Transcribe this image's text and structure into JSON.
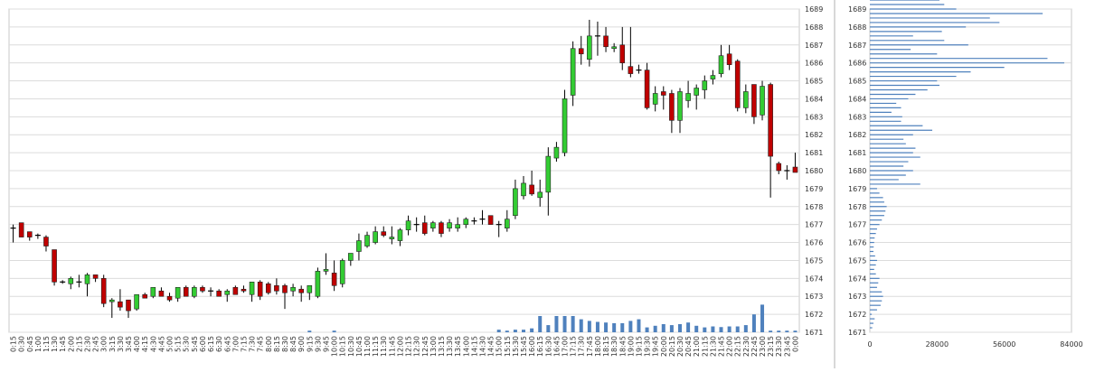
{
  "chart_data": [
    {
      "type": "candlestick",
      "title": "",
      "xlabel": "",
      "ylabel": "",
      "ylim": [
        1671,
        1689
      ],
      "y_ticks": [
        1671,
        1672,
        1673,
        1674,
        1675,
        1676,
        1677,
        1678,
        1679,
        1680,
        1681,
        1682,
        1683,
        1684,
        1685,
        1686,
        1687,
        1688,
        1689
      ],
      "x_ticks": [
        "0:15",
        "0:30",
        "0:45",
        "1:00",
        "1:15",
        "1:30",
        "1:45",
        "2:00",
        "2:15",
        "2:30",
        "2:45",
        "3:00",
        "3:15",
        "3:30",
        "3:45",
        "4:00",
        "4:15",
        "4:30",
        "4:45",
        "5:00",
        "5:15",
        "5:30",
        "5:45",
        "6:00",
        "6:15",
        "6:30",
        "6:45",
        "7:00",
        "7:15",
        "7:30",
        "7:45",
        "8:00",
        "8:15",
        "8:30",
        "8:45",
        "9:00",
        "9:15",
        "9:30",
        "9:45",
        "10:00",
        "10:15",
        "10:30",
        "10:45",
        "11:00",
        "11:15",
        "11:30",
        "11:45",
        "12:00",
        "12:15",
        "12:30",
        "12:45",
        "13:00",
        "13:15",
        "13:30",
        "13:45",
        "14:00",
        "14:15",
        "14:30",
        "14:45",
        "15:00",
        "15:15",
        "15:30",
        "15:45",
        "16:00",
        "16:15",
        "16:30",
        "16:45",
        "17:00",
        "17:15",
        "17:30",
        "17:45",
        "18:00",
        "18:15",
        "18:30",
        "18:45",
        "19:00",
        "19:15",
        "19:30",
        "19:45",
        "20:00",
        "20:15",
        "20:30",
        "20:45",
        "21:00",
        "21:15",
        "21:30",
        "21:45",
        "22:00",
        "22:15",
        "22:30",
        "22:45",
        "23:00",
        "23:15",
        "23:30",
        "23:45",
        "0:00"
      ],
      "grid": true,
      "candles": [
        {
          "o": 1676.8,
          "h": 1677.0,
          "l": 1676.0,
          "c": 1676.8
        },
        {
          "o": 1677.1,
          "h": 1677.1,
          "l": 1676.3,
          "c": 1676.3
        },
        {
          "o": 1676.6,
          "h": 1676.6,
          "l": 1676.1,
          "c": 1676.3
        },
        {
          "o": 1676.4,
          "h": 1676.5,
          "l": 1676.2,
          "c": 1676.4
        },
        {
          "o": 1676.3,
          "h": 1676.4,
          "l": 1675.5,
          "c": 1675.8
        },
        {
          "o": 1675.6,
          "h": 1675.6,
          "l": 1673.6,
          "c": 1673.8
        },
        {
          "o": 1673.8,
          "h": 1673.9,
          "l": 1673.7,
          "c": 1673.8
        },
        {
          "o": 1673.7,
          "h": 1674.1,
          "l": 1673.4,
          "c": 1674.0
        },
        {
          "o": 1673.8,
          "h": 1674.2,
          "l": 1673.5,
          "c": 1673.8
        },
        {
          "o": 1673.7,
          "h": 1674.3,
          "l": 1673.0,
          "c": 1674.2
        },
        {
          "o": 1674.2,
          "h": 1674.2,
          "l": 1673.8,
          "c": 1674.0
        },
        {
          "o": 1674.0,
          "h": 1674.2,
          "l": 1672.4,
          "c": 1672.6
        },
        {
          "o": 1672.7,
          "h": 1672.9,
          "l": 1671.8,
          "c": 1672.8
        },
        {
          "o": 1672.7,
          "h": 1673.4,
          "l": 1672.2,
          "c": 1672.4
        },
        {
          "o": 1672.8,
          "h": 1672.8,
          "l": 1671.8,
          "c": 1672.2
        },
        {
          "o": 1672.3,
          "h": 1673.1,
          "l": 1672.2,
          "c": 1673.1
        },
        {
          "o": 1673.1,
          "h": 1673.2,
          "l": 1672.9,
          "c": 1672.9
        },
        {
          "o": 1673.0,
          "h": 1673.5,
          "l": 1672.9,
          "c": 1673.5
        },
        {
          "o": 1673.3,
          "h": 1673.5,
          "l": 1673.0,
          "c": 1673.0
        },
        {
          "o": 1673.0,
          "h": 1673.2,
          "l": 1672.7,
          "c": 1672.8
        },
        {
          "o": 1672.9,
          "h": 1673.5,
          "l": 1672.7,
          "c": 1673.5
        },
        {
          "o": 1673.5,
          "h": 1673.6,
          "l": 1673.0,
          "c": 1673.0
        },
        {
          "o": 1673.0,
          "h": 1673.6,
          "l": 1672.9,
          "c": 1673.5
        },
        {
          "o": 1673.5,
          "h": 1673.6,
          "l": 1673.2,
          "c": 1673.3
        },
        {
          "o": 1673.3,
          "h": 1673.5,
          "l": 1673.0,
          "c": 1673.3
        },
        {
          "o": 1673.3,
          "h": 1673.4,
          "l": 1673.0,
          "c": 1673.0
        },
        {
          "o": 1673.1,
          "h": 1673.4,
          "l": 1672.7,
          "c": 1673.3
        },
        {
          "o": 1673.5,
          "h": 1673.6,
          "l": 1673.1,
          "c": 1673.1
        },
        {
          "o": 1673.4,
          "h": 1673.6,
          "l": 1673.2,
          "c": 1673.3
        },
        {
          "o": 1673.1,
          "h": 1673.8,
          "l": 1672.7,
          "c": 1673.8
        },
        {
          "o": 1673.8,
          "h": 1673.9,
          "l": 1672.8,
          "c": 1673.0
        },
        {
          "o": 1673.7,
          "h": 1673.8,
          "l": 1673.1,
          "c": 1673.2
        },
        {
          "o": 1673.6,
          "h": 1674.0,
          "l": 1673.1,
          "c": 1673.3
        },
        {
          "o": 1673.6,
          "h": 1673.7,
          "l": 1672.3,
          "c": 1673.2
        },
        {
          "o": 1673.3,
          "h": 1673.7,
          "l": 1673.0,
          "c": 1673.5
        },
        {
          "o": 1673.4,
          "h": 1673.6,
          "l": 1672.7,
          "c": 1673.2
        },
        {
          "o": 1673.2,
          "h": 1673.6,
          "l": 1672.8,
          "c": 1673.6
        },
        {
          "o": 1673.0,
          "h": 1674.6,
          "l": 1672.9,
          "c": 1674.4
        },
        {
          "o": 1674.4,
          "h": 1675.4,
          "l": 1674.2,
          "c": 1674.5
        },
        {
          "o": 1674.3,
          "h": 1675.0,
          "l": 1673.3,
          "c": 1673.6
        },
        {
          "o": 1673.7,
          "h": 1675.1,
          "l": 1673.5,
          "c": 1675.0
        },
        {
          "o": 1675.0,
          "h": 1675.4,
          "l": 1674.7,
          "c": 1675.4
        },
        {
          "o": 1675.5,
          "h": 1676.5,
          "l": 1675.0,
          "c": 1676.1
        },
        {
          "o": 1675.8,
          "h": 1676.6,
          "l": 1675.7,
          "c": 1676.4
        },
        {
          "o": 1676.0,
          "h": 1676.9,
          "l": 1675.9,
          "c": 1676.6
        },
        {
          "o": 1676.6,
          "h": 1676.9,
          "l": 1676.3,
          "c": 1676.4
        },
        {
          "o": 1676.2,
          "h": 1676.9,
          "l": 1675.9,
          "c": 1676.3
        },
        {
          "o": 1676.1,
          "h": 1676.8,
          "l": 1675.8,
          "c": 1676.7
        },
        {
          "o": 1676.7,
          "h": 1677.5,
          "l": 1676.4,
          "c": 1677.2
        },
        {
          "o": 1677.0,
          "h": 1677.4,
          "l": 1676.6,
          "c": 1677.0
        },
        {
          "o": 1677.1,
          "h": 1677.5,
          "l": 1676.4,
          "c": 1676.5
        },
        {
          "o": 1676.8,
          "h": 1677.2,
          "l": 1676.6,
          "c": 1677.1
        },
        {
          "o": 1677.1,
          "h": 1677.2,
          "l": 1676.3,
          "c": 1676.5
        },
        {
          "o": 1676.8,
          "h": 1677.3,
          "l": 1676.6,
          "c": 1677.1
        },
        {
          "o": 1676.8,
          "h": 1677.4,
          "l": 1676.6,
          "c": 1677.0
        },
        {
          "o": 1677.0,
          "h": 1677.4,
          "l": 1676.8,
          "c": 1677.3
        },
        {
          "o": 1677.2,
          "h": 1677.4,
          "l": 1677.0,
          "c": 1677.2
        },
        {
          "o": 1677.3,
          "h": 1677.8,
          "l": 1677.0,
          "c": 1677.3
        },
        {
          "o": 1677.5,
          "h": 1677.5,
          "l": 1677.0,
          "c": 1677.0
        },
        {
          "o": 1677.0,
          "h": 1677.2,
          "l": 1676.3,
          "c": 1677.0
        },
        {
          "o": 1676.8,
          "h": 1677.8,
          "l": 1676.6,
          "c": 1677.3
        },
        {
          "o": 1677.5,
          "h": 1679.5,
          "l": 1677.3,
          "c": 1679.0
        },
        {
          "o": 1678.6,
          "h": 1679.7,
          "l": 1678.4,
          "c": 1679.3
        },
        {
          "o": 1679.2,
          "h": 1680.0,
          "l": 1678.6,
          "c": 1678.7
        },
        {
          "o": 1678.5,
          "h": 1679.5,
          "l": 1678.0,
          "c": 1678.8
        },
        {
          "o": 1678.8,
          "h": 1681.3,
          "l": 1677.5,
          "c": 1680.8
        },
        {
          "o": 1680.7,
          "h": 1681.6,
          "l": 1680.5,
          "c": 1681.3
        },
        {
          "o": 1681.0,
          "h": 1684.5,
          "l": 1680.8,
          "c": 1684.0
        },
        {
          "o": 1684.2,
          "h": 1687.2,
          "l": 1683.6,
          "c": 1686.8
        },
        {
          "o": 1686.8,
          "h": 1687.5,
          "l": 1685.9,
          "c": 1686.5
        },
        {
          "o": 1686.2,
          "h": 1688.4,
          "l": 1685.8,
          "c": 1687.5
        },
        {
          "o": 1687.5,
          "h": 1688.3,
          "l": 1686.4,
          "c": 1687.5
        },
        {
          "o": 1687.5,
          "h": 1688.0,
          "l": 1686.6,
          "c": 1686.9
        },
        {
          "o": 1686.8,
          "h": 1687.1,
          "l": 1686.6,
          "c": 1686.9
        },
        {
          "o": 1687.0,
          "h": 1688.0,
          "l": 1685.6,
          "c": 1686.0
        },
        {
          "o": 1685.8,
          "h": 1688.0,
          "l": 1685.2,
          "c": 1685.4
        },
        {
          "o": 1685.6,
          "h": 1685.9,
          "l": 1685.4,
          "c": 1685.6
        },
        {
          "o": 1685.6,
          "h": 1686.0,
          "l": 1683.4,
          "c": 1683.5
        },
        {
          "o": 1683.7,
          "h": 1684.7,
          "l": 1683.3,
          "c": 1684.3
        },
        {
          "o": 1684.4,
          "h": 1684.7,
          "l": 1683.4,
          "c": 1684.2
        },
        {
          "o": 1684.3,
          "h": 1684.5,
          "l": 1682.1,
          "c": 1682.8
        },
        {
          "o": 1682.8,
          "h": 1684.6,
          "l": 1682.1,
          "c": 1684.4
        },
        {
          "o": 1683.9,
          "h": 1685.0,
          "l": 1683.5,
          "c": 1684.3
        },
        {
          "o": 1684.2,
          "h": 1684.8,
          "l": 1683.4,
          "c": 1684.6
        },
        {
          "o": 1684.5,
          "h": 1685.3,
          "l": 1684.0,
          "c": 1685.0
        },
        {
          "o": 1685.1,
          "h": 1685.6,
          "l": 1684.8,
          "c": 1685.3
        },
        {
          "o": 1685.4,
          "h": 1687.0,
          "l": 1685.2,
          "c": 1686.4
        },
        {
          "o": 1686.5,
          "h": 1687.0,
          "l": 1685.6,
          "c": 1685.9
        },
        {
          "o": 1686.1,
          "h": 1686.2,
          "l": 1683.3,
          "c": 1683.5
        },
        {
          "o": 1683.5,
          "h": 1684.8,
          "l": 1683.2,
          "c": 1684.4
        },
        {
          "o": 1684.8,
          "h": 1684.8,
          "l": 1682.6,
          "c": 1683.0
        },
        {
          "o": 1683.1,
          "h": 1685.0,
          "l": 1682.8,
          "c": 1684.7
        },
        {
          "o": 1684.8,
          "h": 1684.9,
          "l": 1678.5,
          "c": 1680.8
        },
        {
          "o": 1680.4,
          "h": 1680.5,
          "l": 1679.8,
          "c": 1680.0
        },
        {
          "o": 1680.0,
          "h": 1680.3,
          "l": 1679.5,
          "c": 1680.0
        },
        {
          "o": 1680.2,
          "h": 1681.0,
          "l": 1679.9,
          "c": 1679.9
        }
      ],
      "volume": [
        0,
        0,
        0,
        0,
        0,
        0,
        0,
        0,
        0,
        0,
        0,
        0,
        0,
        0,
        0,
        0,
        0,
        0,
        0,
        0,
        0,
        0,
        0,
        0,
        0,
        0,
        0,
        0,
        0,
        0,
        0,
        0,
        0,
        0,
        0,
        0,
        0.05,
        0,
        0,
        0.05,
        0,
        0,
        0,
        0,
        0,
        0,
        0,
        0,
        0,
        0,
        0,
        0,
        0,
        0,
        0,
        0,
        0,
        0,
        0,
        0.08,
        0.05,
        0.08,
        0.08,
        0.12,
        0.5,
        0.22,
        0.5,
        0.5,
        0.5,
        0.4,
        0.35,
        0.32,
        0.3,
        0.28,
        0.28,
        0.35,
        0.4,
        0.15,
        0.2,
        0.25,
        0.22,
        0.25,
        0.3,
        0.2,
        0.15,
        0.18,
        0.16,
        0.18,
        0.18,
        0.22,
        0.55,
        0.85,
        0.05,
        0.05,
        0.05,
        0.05
      ]
    },
    {
      "type": "bar",
      "orientation": "horizontal",
      "title": "",
      "xlim": [
        0,
        84000
      ],
      "x_ticks": [
        "0",
        "28000",
        "56000",
        "84000"
      ],
      "ylim": [
        1671,
        1689
      ],
      "y_ticks": [
        1671,
        1672,
        1673,
        1674,
        1675,
        1676,
        1677,
        1678,
        1679,
        1680,
        1681,
        1682,
        1683,
        1684,
        1685,
        1686,
        1687,
        1688,
        1689
      ],
      "bin_size": 0.25,
      "bins_start": 1671.25,
      "values": [
        1000,
        1500,
        2000,
        800,
        3000,
        4500,
        5000,
        5500,
        5000,
        3000,
        3500,
        4000,
        2500,
        1800,
        2500,
        3000,
        2200,
        1500,
        1600,
        1800,
        2000,
        2500,
        3000,
        4000,
        5000,
        6000,
        6500,
        7000,
        6000,
        5500,
        4000,
        3000,
        21000,
        12000,
        15000,
        18000,
        14000,
        16000,
        21000,
        18000,
        19000,
        15000,
        14000,
        18000,
        26000,
        22000,
        13000,
        13500,
        9000,
        13000,
        11000,
        16000,
        19000,
        24000,
        29000,
        28000,
        36000,
        42000,
        56000,
        81000,
        74000,
        28000,
        17000,
        41000,
        31000,
        18000,
        30000,
        40000,
        54000,
        50000,
        72000,
        36000,
        31000,
        29000,
        35000,
        34000,
        17000,
        0
      ]
    }
  ]
}
